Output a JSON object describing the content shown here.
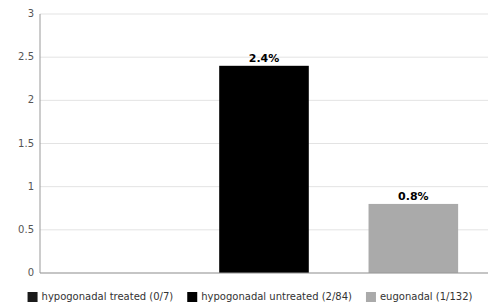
{
  "chart_data": {
    "type": "bar",
    "categories": [
      "hypogonadal treated (0/7)",
      "hypogonadal untreated (2/84)",
      "eugonadal (1/132)"
    ],
    "values": [
      0.0,
      2.4,
      0.8
    ],
    "colors": [
      "#1a1a1a",
      "#000000",
      "#aaaaaa"
    ],
    "data_labels": true,
    "value_labels": [
      null,
      "2.4%",
      "0.8%"
    ],
    "ylim": [
      0,
      3
    ],
    "yticks": [
      0,
      0.5,
      1,
      1.5,
      2,
      2.5,
      3
    ],
    "grid": true,
    "tick_labels": "y",
    "legend": "bottom"
  }
}
